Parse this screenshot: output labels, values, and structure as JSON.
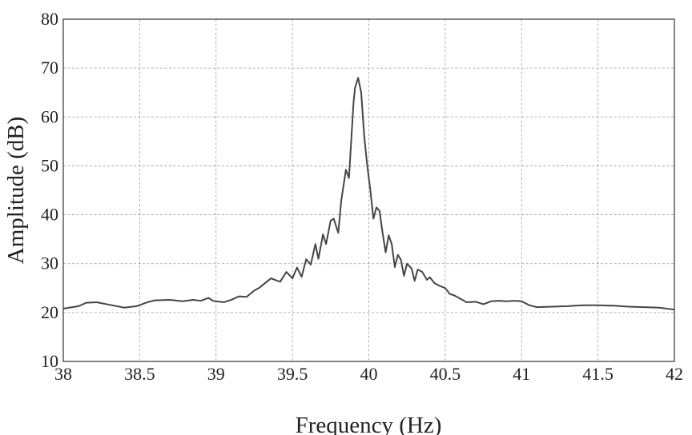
{
  "chart_data": {
    "type": "line",
    "title": "",
    "xlabel": "Frequency (Hz)",
    "ylabel": "Amplitude (dB)",
    "xlim": [
      38,
      42
    ],
    "ylim": [
      10,
      80
    ],
    "xticks": [
      "38",
      "38.5",
      "39",
      "39.5",
      "40",
      "40.5",
      "41",
      "41.5",
      "42"
    ],
    "yticks": [
      "10",
      "20",
      "30",
      "40",
      "50",
      "60",
      "70",
      "80"
    ],
    "grid": true,
    "series": [
      {
        "color": "#454545",
        "x": [
          38.0,
          38.1,
          38.15,
          38.22,
          38.3,
          38.4,
          38.48,
          38.55,
          38.6,
          38.7,
          38.78,
          38.85,
          38.9,
          38.95,
          38.98,
          39.0,
          39.05,
          39.1,
          39.15,
          39.2,
          39.25,
          39.28,
          39.32,
          39.36,
          39.4,
          39.42,
          39.46,
          39.5,
          39.53,
          39.56,
          39.59,
          39.62,
          39.65,
          39.67,
          39.7,
          39.72,
          39.75,
          39.77,
          39.8,
          39.82,
          39.85,
          39.87,
          39.9,
          39.91,
          39.93,
          39.95,
          39.97,
          39.99,
          40.01,
          40.03,
          40.05,
          40.07,
          40.09,
          40.11,
          40.13,
          40.15,
          40.17,
          40.19,
          40.21,
          40.23,
          40.25,
          40.28,
          40.3,
          40.32,
          40.35,
          40.38,
          40.4,
          40.43,
          40.46,
          40.5,
          40.53,
          40.56,
          40.6,
          40.64,
          40.7,
          40.75,
          40.8,
          40.85,
          40.9,
          40.95,
          41.0,
          41.05,
          41.1,
          41.2,
          41.3,
          41.4,
          41.5,
          41.6,
          41.7,
          41.8,
          41.9,
          42.0
        ],
        "y": [
          20.8,
          21.3,
          22.0,
          22.1,
          21.6,
          21.0,
          21.3,
          22.1,
          22.5,
          22.6,
          22.3,
          22.6,
          22.4,
          23.0,
          22.4,
          22.3,
          22.1,
          22.6,
          23.3,
          23.2,
          24.5,
          25.0,
          26.0,
          27.0,
          26.5,
          26.3,
          28.3,
          27.0,
          29.2,
          27.3,
          30.9,
          29.8,
          34.0,
          31.0,
          36.0,
          34.0,
          38.8,
          39.2,
          36.3,
          43.0,
          49.2,
          47.5,
          63.0,
          66.0,
          68.0,
          65.0,
          56.0,
          50.0,
          45.0,
          39.2,
          41.5,
          40.8,
          36.3,
          32.3,
          35.8,
          34.0,
          29.3,
          31.8,
          30.8,
          27.5,
          30.0,
          29.0,
          26.5,
          28.8,
          28.3,
          26.7,
          27.2,
          26.0,
          25.5,
          25.0,
          23.8,
          23.5,
          22.8,
          22.1,
          22.2,
          21.7,
          22.3,
          22.4,
          22.3,
          22.4,
          22.3,
          21.5,
          21.1,
          21.2,
          21.3,
          21.5,
          21.5,
          21.4,
          21.2,
          21.1,
          21.0,
          20.6
        ]
      }
    ]
  }
}
